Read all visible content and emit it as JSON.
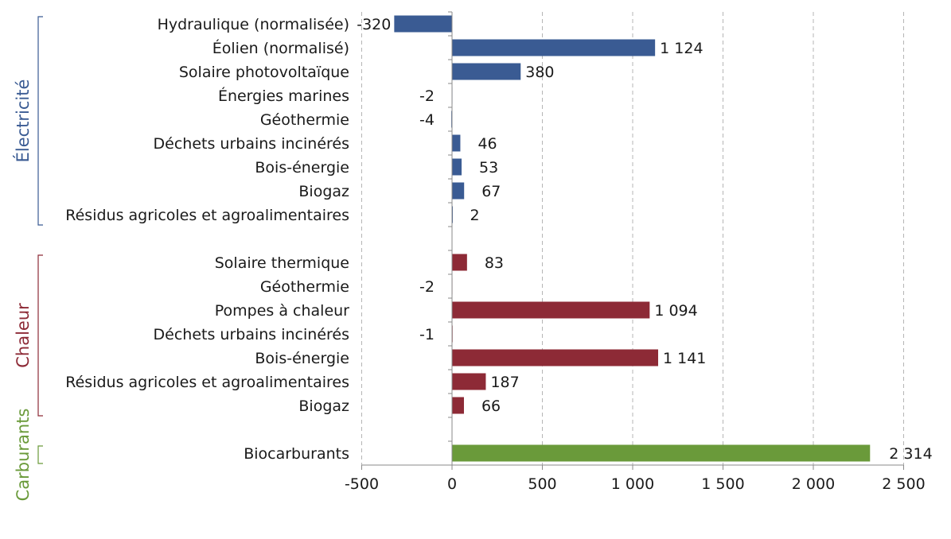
{
  "chart_data": {
    "type": "bar",
    "orientation": "horizontal",
    "xlim": [
      -500,
      2500
    ],
    "xticks": [
      -500,
      0,
      500,
      1000,
      1500,
      2000,
      2500
    ],
    "xtick_labels": [
      "-500",
      "0",
      "500",
      "1 000",
      "1 500",
      "2 000",
      "2 500"
    ],
    "grid": "vertical dashed",
    "groups": [
      {
        "name": "Électricité",
        "color": "#3a5b93",
        "items": [
          {
            "label": "Hydraulique (normalisée)",
            "value": -320,
            "value_label": "-320"
          },
          {
            "label": "Éolien (normalisé)",
            "value": 1124,
            "value_label": "1 124"
          },
          {
            "label": "Solaire photovoltaïque",
            "value": 380,
            "value_label": "380"
          },
          {
            "label": "Énergies marines",
            "value": -2,
            "value_label": "-2"
          },
          {
            "label": "Géothermie",
            "value": -4,
            "value_label": "-4"
          },
          {
            "label": "Déchets urbains incinérés",
            "value": 46,
            "value_label": "46"
          },
          {
            "label": "Bois-énergie",
            "value": 53,
            "value_label": "53"
          },
          {
            "label": "Biogaz",
            "value": 67,
            "value_label": "67"
          },
          {
            "label": "Résidus agricoles et agroalimentaires",
            "value": 2,
            "value_label": "2"
          }
        ]
      },
      {
        "name": "Chaleur",
        "color": "#8d2a36",
        "items": [
          {
            "label": "Solaire thermique",
            "value": 83,
            "value_label": "83"
          },
          {
            "label": "Géothermie",
            "value": -2,
            "value_label": "-2"
          },
          {
            "label": "Pompes à chaleur",
            "value": 1094,
            "value_label": "1 094"
          },
          {
            "label": "Déchets urbains incinérés",
            "value": -1,
            "value_label": "-1"
          },
          {
            "label": "Bois-énergie",
            "value": 1141,
            "value_label": "1 141"
          },
          {
            "label": "Résidus agricoles et agroalimentaires",
            "value": 187,
            "value_label": "187"
          },
          {
            "label": "Biogaz",
            "value": 66,
            "value_label": "66"
          }
        ]
      },
      {
        "name": "Carburants",
        "color": "#6a9a3a",
        "items": [
          {
            "label": "Biocarburants",
            "value": 2314,
            "value_label": "2 314"
          }
        ]
      }
    ]
  }
}
